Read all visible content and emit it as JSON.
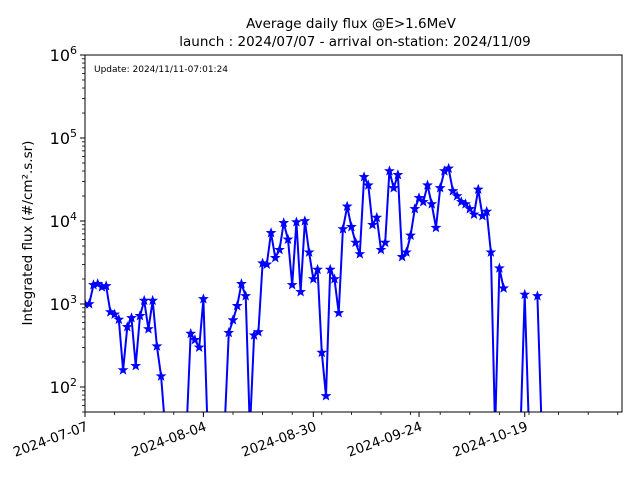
{
  "chart_data": {
    "type": "line",
    "title_line1": "Average daily flux @E>1.6MeV",
    "title_line2": "launch : 2024/07/07 - arrival on-station: 2024/11/09",
    "update_note": "Update: 2024/11/11-07:01:24",
    "ylabel": "Integrated flux (#/cm².s.sr)",
    "yscale": "log",
    "ylim": [
      50,
      1000000
    ],
    "xlim": [
      "2024-07-07",
      "2024-11-11"
    ],
    "x_tick_dates": [
      "2024-07-07",
      "2024-08-04",
      "2024-08-30",
      "2024-09-24",
      "2024-10-19"
    ],
    "x_tick_labels": [
      "2024-07-07",
      "2024-08-04",
      "2024-08-30",
      "2024-09-24",
      "2024-10-19"
    ],
    "y_ticks": [
      {
        "value": 100,
        "base": "10",
        "exp": "2"
      },
      {
        "value": 1000,
        "base": "10",
        "exp": "3"
      },
      {
        "value": 10000,
        "base": "10",
        "exp": "4"
      },
      {
        "value": 100000,
        "base": "10",
        "exp": "5"
      },
      {
        "value": 1000000,
        "base": "10",
        "exp": "6"
      }
    ],
    "series": [
      {
        "color": "#0000ff",
        "marker": "star",
        "points": [
          [
            "2024-07-07",
            1000
          ],
          [
            "2024-07-08",
            1000
          ],
          [
            "2024-07-09",
            1700
          ],
          [
            "2024-07-10",
            1750
          ],
          [
            "2024-07-11",
            1600
          ],
          [
            "2024-07-12",
            1650
          ],
          [
            "2024-07-13",
            800
          ],
          [
            "2024-07-14",
            750
          ],
          [
            "2024-07-15",
            650
          ],
          [
            "2024-07-16",
            160
          ],
          [
            "2024-07-17",
            530
          ],
          [
            "2024-07-18",
            680
          ],
          [
            "2024-07-19",
            180
          ],
          [
            "2024-07-20",
            720
          ],
          [
            "2024-07-21",
            1100
          ],
          [
            "2024-07-22",
            500
          ],
          [
            "2024-07-23",
            1100
          ],
          [
            "2024-07-24",
            310
          ],
          [
            "2024-07-25",
            135
          ],
          [
            "2024-07-26",
            30
          ],
          [
            "2024-07-27",
            null
          ],
          [
            "2024-07-28",
            null
          ],
          [
            "2024-07-29",
            null
          ],
          [
            "2024-07-30",
            null
          ],
          [
            "2024-07-31",
            30
          ],
          [
            "2024-08-01",
            440
          ],
          [
            "2024-08-02",
            370
          ],
          [
            "2024-08-03",
            300
          ],
          [
            "2024-08-04",
            1150
          ],
          [
            "2024-08-05",
            30
          ],
          [
            "2024-08-06",
            null
          ],
          [
            "2024-08-07",
            null
          ],
          [
            "2024-08-08",
            null
          ],
          [
            "2024-08-09",
            30
          ],
          [
            "2024-08-10",
            450
          ],
          [
            "2024-08-11",
            640
          ],
          [
            "2024-08-12",
            950
          ],
          [
            "2024-08-13",
            1750
          ],
          [
            "2024-08-14",
            1250
          ],
          [
            "2024-08-15",
            30
          ],
          [
            "2024-08-16",
            420
          ],
          [
            "2024-08-17",
            460
          ],
          [
            "2024-08-18",
            3100
          ],
          [
            "2024-08-19",
            3000
          ],
          [
            "2024-08-20",
            7200
          ],
          [
            "2024-08-21",
            3600
          ],
          [
            "2024-08-22",
            4500
          ],
          [
            "2024-08-23",
            9500
          ],
          [
            "2024-08-24",
            6000
          ],
          [
            "2024-08-25",
            1700
          ],
          [
            "2024-08-26",
            9700
          ],
          [
            "2024-08-27",
            1400
          ],
          [
            "2024-08-28",
            10000
          ],
          [
            "2024-08-29",
            4200
          ],
          [
            "2024-08-30",
            2000
          ],
          [
            "2024-08-31",
            2600
          ],
          [
            "2024-09-01",
            260
          ],
          [
            "2024-09-02",
            78
          ],
          [
            "2024-09-03",
            2600
          ],
          [
            "2024-09-04",
            2000
          ],
          [
            "2024-09-05",
            780
          ],
          [
            "2024-09-06",
            8000
          ],
          [
            "2024-09-07",
            15000
          ],
          [
            "2024-09-08",
            8500
          ],
          [
            "2024-09-09",
            5500
          ],
          [
            "2024-09-10",
            4000
          ],
          [
            "2024-09-11",
            34000
          ],
          [
            "2024-09-12",
            27000
          ],
          [
            "2024-09-13",
            9000
          ],
          [
            "2024-09-14",
            11000
          ],
          [
            "2024-09-15",
            4500
          ],
          [
            "2024-09-16",
            5500
          ],
          [
            "2024-09-17",
            40000
          ],
          [
            "2024-09-18",
            25000
          ],
          [
            "2024-09-19",
            36000
          ],
          [
            "2024-09-20",
            3700
          ],
          [
            "2024-09-21",
            4200
          ],
          [
            "2024-09-22",
            6700
          ],
          [
            "2024-09-23",
            14000
          ],
          [
            "2024-09-24",
            19000
          ],
          [
            "2024-09-25",
            17000
          ],
          [
            "2024-09-26",
            27000
          ],
          [
            "2024-09-27",
            16000
          ],
          [
            "2024-09-28",
            8300
          ],
          [
            "2024-09-29",
            25000
          ],
          [
            "2024-09-30",
            40000
          ],
          [
            "2024-10-01",
            43000
          ],
          [
            "2024-10-02",
            23000
          ],
          [
            "2024-10-03",
            20000
          ],
          [
            "2024-10-04",
            17000
          ],
          [
            "2024-10-05",
            16000
          ],
          [
            "2024-10-06",
            14000
          ],
          [
            "2024-10-07",
            12000
          ],
          [
            "2024-10-08",
            24000
          ],
          [
            "2024-10-09",
            11500
          ],
          [
            "2024-10-10",
            13000
          ],
          [
            "2024-10-11",
            4200
          ],
          [
            "2024-10-12",
            30
          ],
          [
            "2024-10-13",
            2700
          ],
          [
            "2024-10-14",
            1550
          ],
          [
            "2024-10-15",
            null
          ],
          [
            "2024-10-16",
            null
          ],
          [
            "2024-10-17",
            null
          ],
          [
            "2024-10-18",
            30
          ],
          [
            "2024-10-19",
            1300
          ],
          [
            "2024-10-20",
            30
          ],
          [
            "2024-10-21",
            null
          ],
          [
            "2024-10-22",
            1250
          ],
          [
            "2024-10-23",
            30
          ]
        ]
      }
    ]
  }
}
